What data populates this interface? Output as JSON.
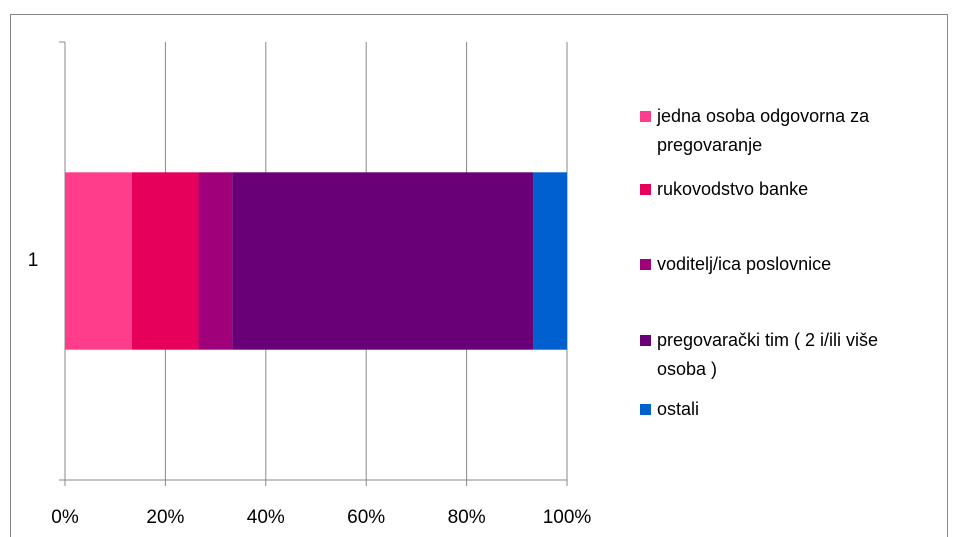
{
  "chart_data": {
    "type": "stacked_barh",
    "categories": [
      "1"
    ],
    "series": [
      {
        "name": "jedna osoba odgovorna za pregovaranje",
        "color": "#ff3d8b",
        "values": [
          13.3
        ]
      },
      {
        "name": "rukovodstvo banke",
        "color": "#e6005c",
        "values": [
          13.3
        ]
      },
      {
        "name": "voditelj/ica poslovnice",
        "color": "#a0007a",
        "values": [
          6.7
        ]
      },
      {
        "name": "pregovarački tim ( 2 i/ili više osoba )",
        "color": "#6a0078",
        "values": [
          60
        ]
      },
      {
        "name": "ostali",
        "color": "#0060d0",
        "values": [
          6.7
        ]
      }
    ],
    "xlim": [
      0,
      100
    ],
    "xticks": [
      {
        "value": 0,
        "label": "0%"
      },
      {
        "value": 20,
        "label": "20%"
      },
      {
        "value": 40,
        "label": "40%"
      },
      {
        "value": 60,
        "label": "60%"
      },
      {
        "value": 80,
        "label": "80%"
      },
      {
        "value": 100,
        "label": "100%"
      }
    ],
    "grid": true,
    "legend": "right"
  }
}
